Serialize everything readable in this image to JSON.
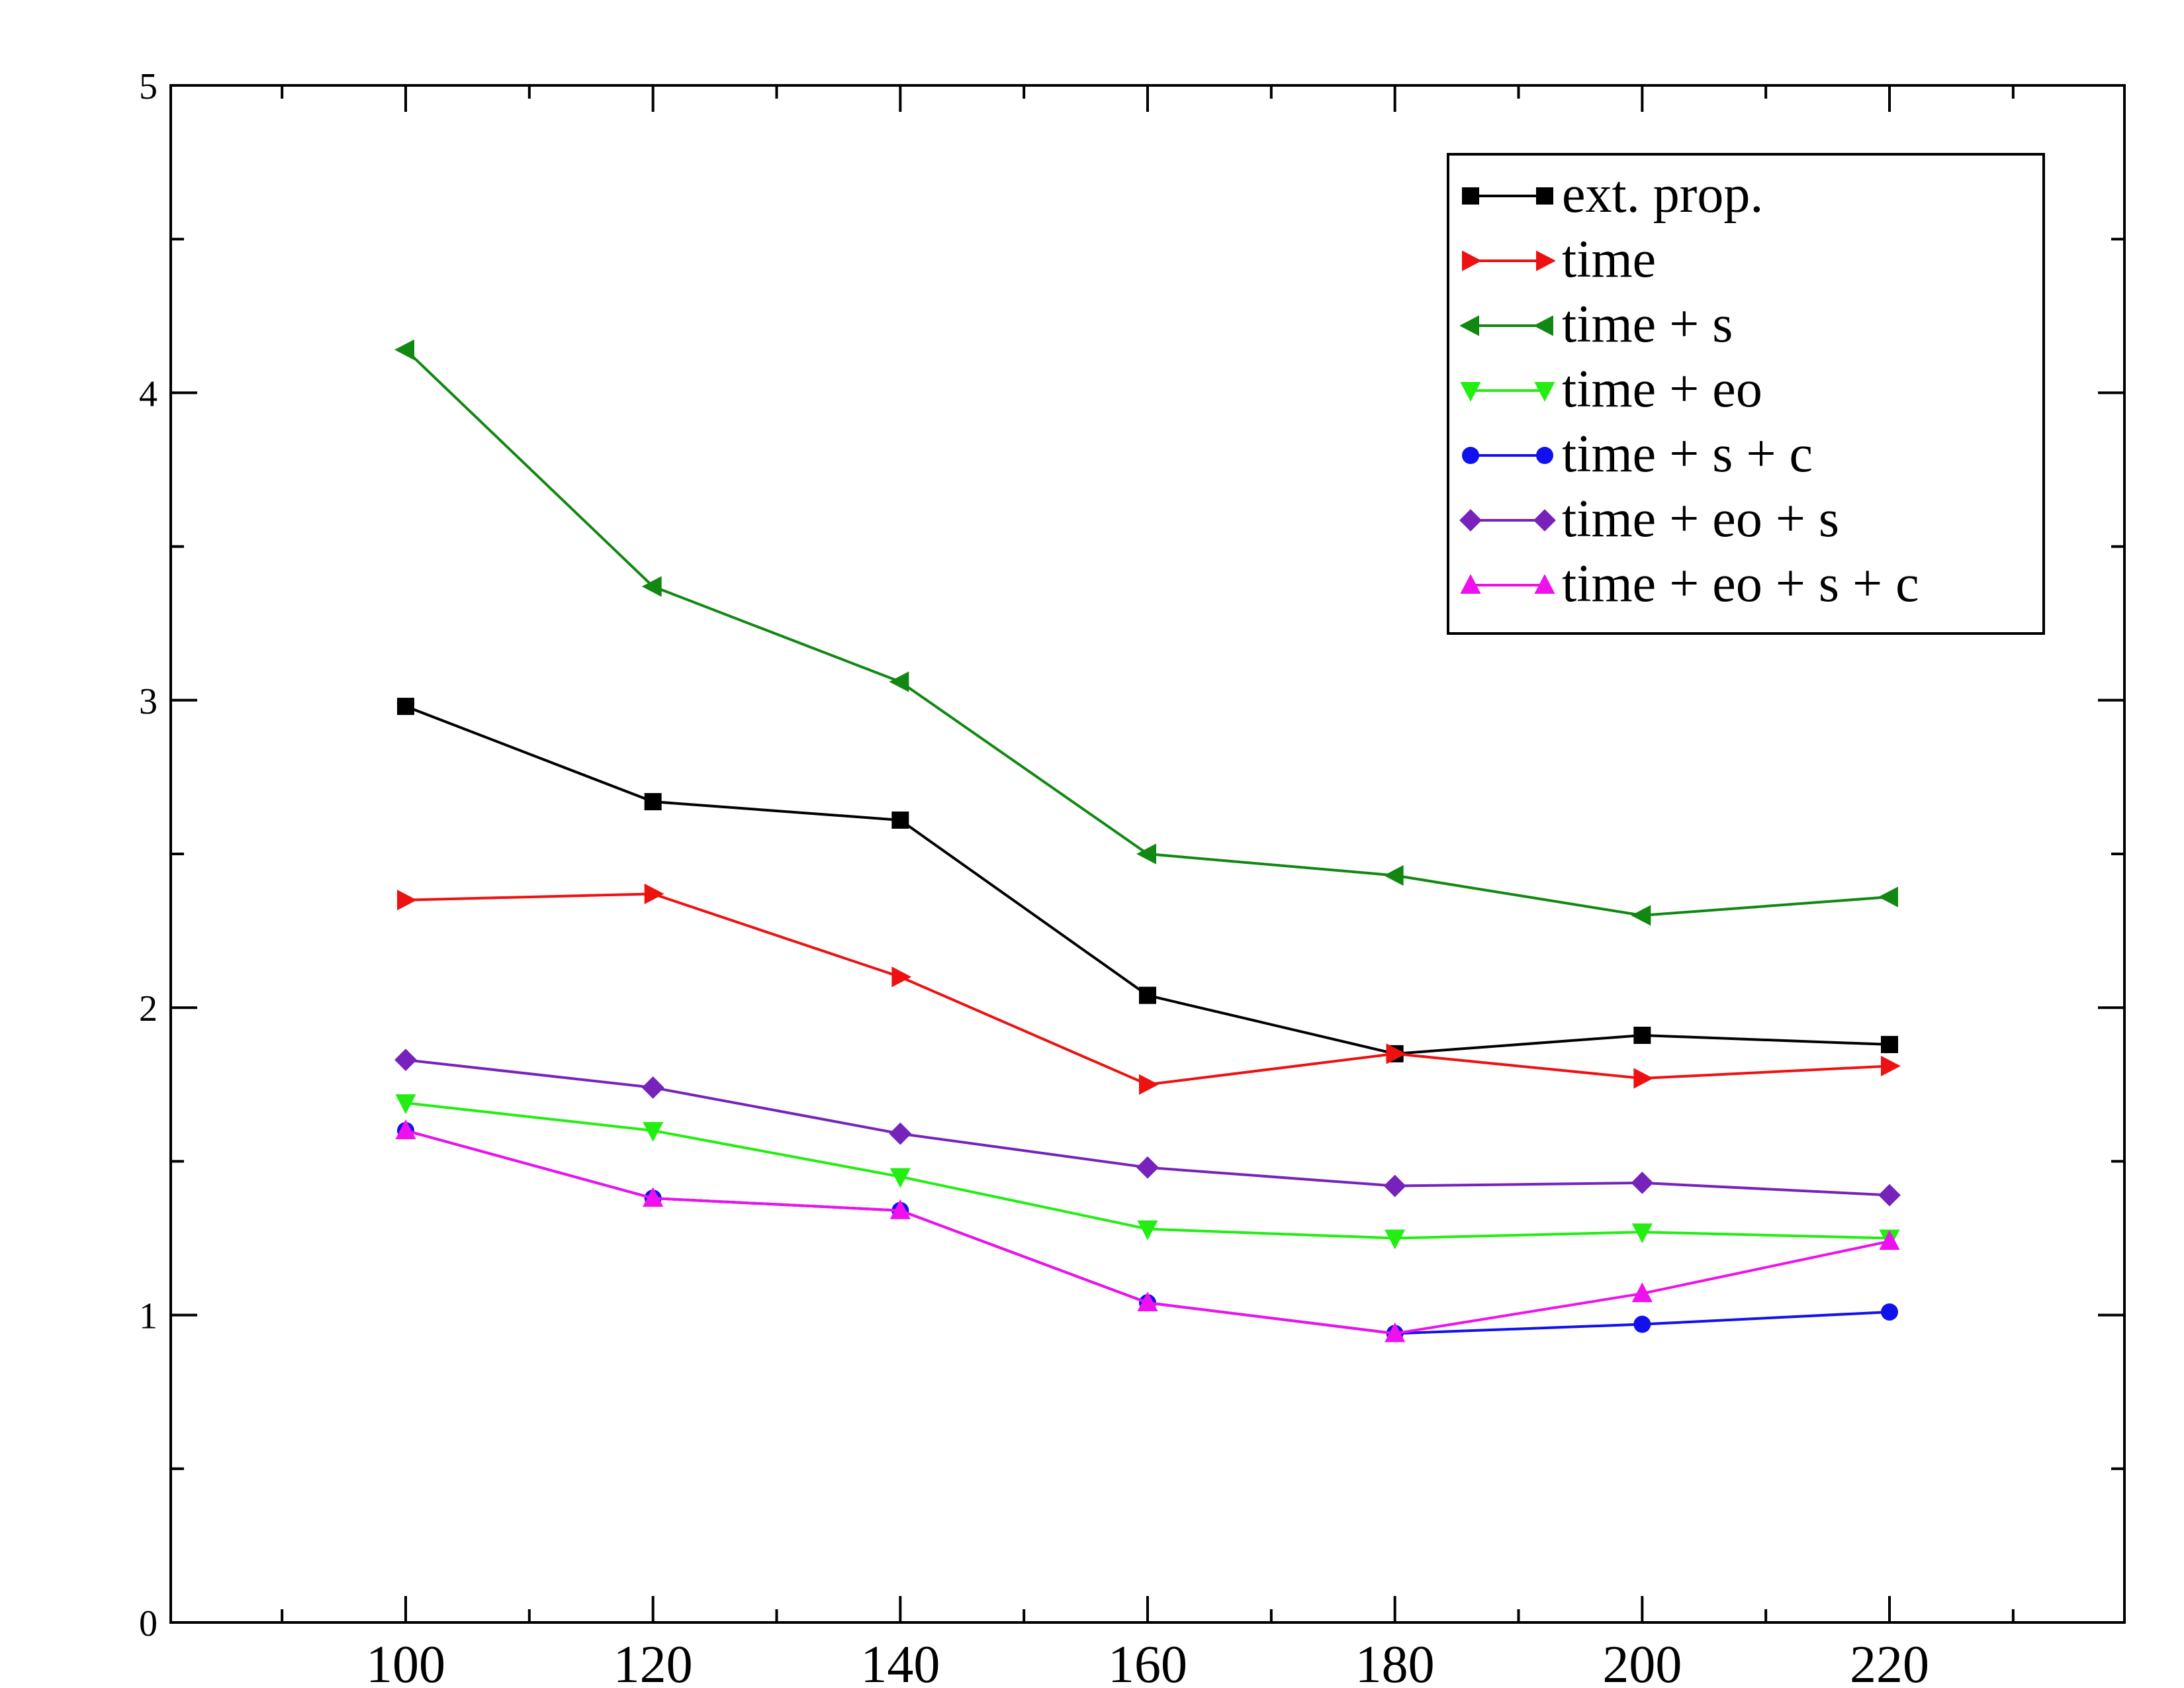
{
  "chart_data": {
    "type": "line",
    "title": "",
    "xlabel": "",
    "ylabel": "",
    "xlim": [
      81,
      239
    ],
    "ylim": [
      0,
      5
    ],
    "x_ticks": [
      100,
      120,
      140,
      160,
      180,
      200,
      220
    ],
    "y_ticks": [
      0,
      1,
      2,
      3,
      4,
      5
    ],
    "x_tick_labels": [
      "100",
      "120",
      "140",
      "160",
      "180",
      "200",
      "220"
    ],
    "y_tick_labels": [
      "0",
      "1",
      "2",
      "3",
      "4",
      "5"
    ],
    "grid": false,
    "legend_position": "top-right",
    "series": [
      {
        "name": "ext. prop.",
        "color": "#000000",
        "marker": "square",
        "x": [
          100,
          120,
          140,
          160,
          180,
          200,
          220
        ],
        "y": [
          2.98,
          2.67,
          2.61,
          2.04,
          1.85,
          1.91,
          1.88
        ]
      },
      {
        "name": "time",
        "color": "#ee1111",
        "marker": "triangle-right",
        "x": [
          100,
          120,
          140,
          160,
          180,
          200,
          220
        ],
        "y": [
          2.35,
          2.37,
          2.1,
          1.75,
          1.85,
          1.77,
          1.81
        ]
      },
      {
        "name": "time + s",
        "color": "#118811",
        "marker": "triangle-left",
        "x": [
          100,
          120,
          140,
          160,
          180,
          200,
          220
        ],
        "y": [
          4.14,
          3.37,
          3.06,
          2.5,
          2.43,
          2.3,
          2.36
        ]
      },
      {
        "name": "time + eo",
        "color": "#22ee11",
        "marker": "triangle-down",
        "x": [
          100,
          120,
          140,
          160,
          180,
          200,
          220
        ],
        "y": [
          1.69,
          1.6,
          1.45,
          1.28,
          1.25,
          1.27,
          1.25
        ]
      },
      {
        "name": "time + s + c",
        "color": "#1111ee",
        "marker": "circle",
        "x": [
          100,
          120,
          140,
          160,
          180,
          200,
          220
        ],
        "y": [
          1.6,
          1.38,
          1.34,
          1.04,
          0.94,
          0.97,
          1.01
        ]
      },
      {
        "name": "time + eo + s",
        "color": "#7722bb",
        "marker": "diamond",
        "x": [
          100,
          120,
          140,
          160,
          180,
          200,
          220
        ],
        "y": [
          1.83,
          1.74,
          1.59,
          1.48,
          1.42,
          1.43,
          1.39
        ]
      },
      {
        "name": "time + eo + s + c",
        "color": "#ee11ee",
        "marker": "triangle-up",
        "x": [
          100,
          120,
          140,
          160,
          180,
          200,
          220
        ],
        "y": [
          1.6,
          1.38,
          1.34,
          1.04,
          0.94,
          1.07,
          1.24
        ]
      }
    ]
  }
}
